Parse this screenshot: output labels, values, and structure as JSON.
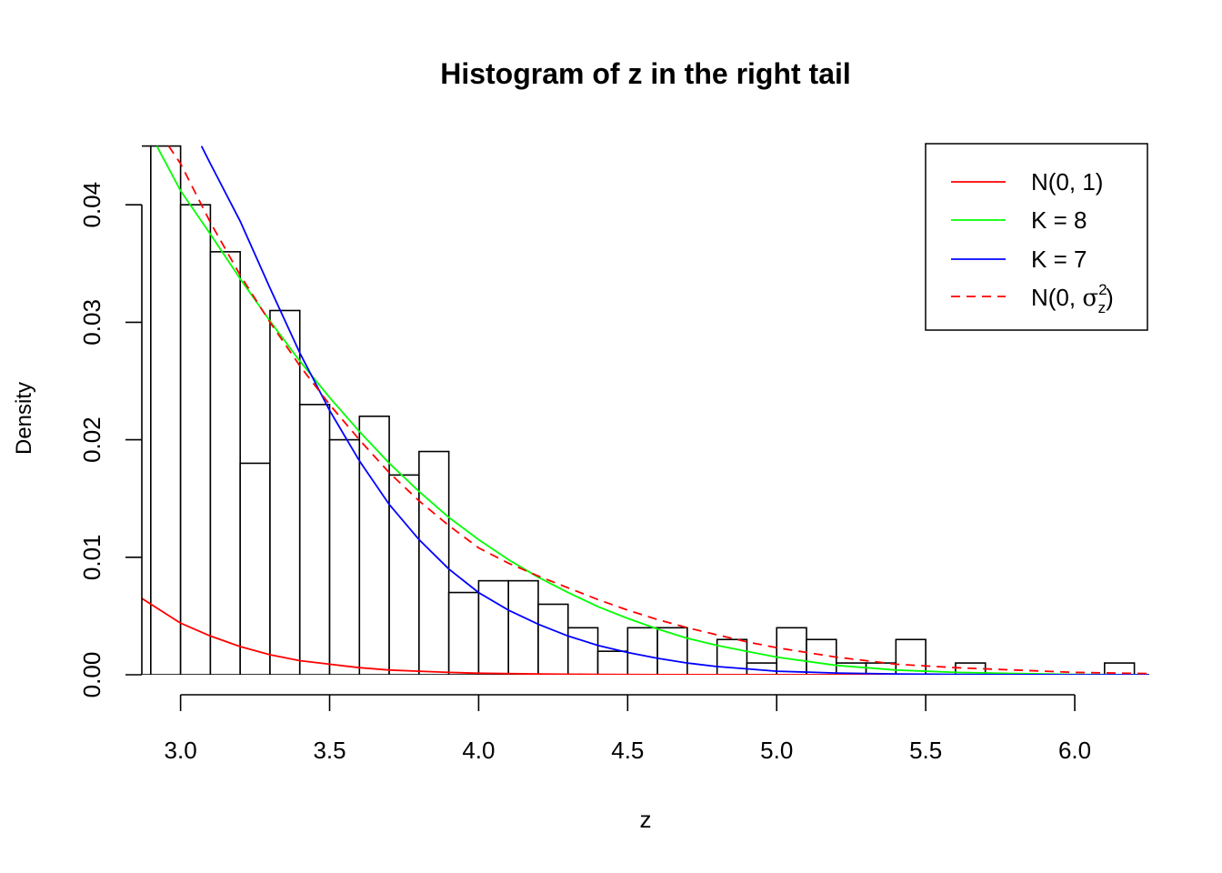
{
  "chart_data": {
    "type": "histogram",
    "title": "Histogram of z in the right tail",
    "xlabel": "z",
    "ylabel": "Density",
    "xlim": [
      2.87,
      6.25
    ],
    "ylim": [
      0,
      0.0452
    ],
    "x_ticks": [
      3.0,
      3.5,
      4.0,
      4.5,
      5.0,
      5.5,
      6.0
    ],
    "x_tick_labels": [
      "3.0",
      "3.5",
      "4.0",
      "4.5",
      "5.0",
      "5.5",
      "6.0"
    ],
    "y_ticks": [
      0.0,
      0.01,
      0.02,
      0.03,
      0.04
    ],
    "y_tick_labels": [
      "0.00",
      "0.01",
      "0.02",
      "0.03",
      "0.04"
    ],
    "grid": false,
    "legend_position": "top-right",
    "histogram": {
      "bins": [
        {
          "x0": 2.8,
          "x1": 2.9,
          "density": 0.045
        },
        {
          "x0": 2.9,
          "x1": 3.0,
          "density": 0.045
        },
        {
          "x0": 3.0,
          "x1": 3.1,
          "density": 0.04
        },
        {
          "x0": 3.1,
          "x1": 3.2,
          "density": 0.036
        },
        {
          "x0": 3.2,
          "x1": 3.3,
          "density": 0.018
        },
        {
          "x0": 3.3,
          "x1": 3.4,
          "density": 0.031
        },
        {
          "x0": 3.4,
          "x1": 3.5,
          "density": 0.023
        },
        {
          "x0": 3.5,
          "x1": 3.6,
          "density": 0.02
        },
        {
          "x0": 3.6,
          "x1": 3.7,
          "density": 0.022
        },
        {
          "x0": 3.7,
          "x1": 3.8,
          "density": 0.017
        },
        {
          "x0": 3.8,
          "x1": 3.9,
          "density": 0.019
        },
        {
          "x0": 3.9,
          "x1": 4.0,
          "density": 0.007
        },
        {
          "x0": 4.0,
          "x1": 4.1,
          "density": 0.008
        },
        {
          "x0": 4.1,
          "x1": 4.2,
          "density": 0.008
        },
        {
          "x0": 4.2,
          "x1": 4.3,
          "density": 0.006
        },
        {
          "x0": 4.3,
          "x1": 4.4,
          "density": 0.004
        },
        {
          "x0": 4.4,
          "x1": 4.5,
          "density": 0.002
        },
        {
          "x0": 4.5,
          "x1": 4.6,
          "density": 0.004
        },
        {
          "x0": 4.6,
          "x1": 4.7,
          "density": 0.004
        },
        {
          "x0": 4.7,
          "x1": 4.8,
          "density": 0.0
        },
        {
          "x0": 4.8,
          "x1": 4.9,
          "density": 0.003
        },
        {
          "x0": 4.9,
          "x1": 5.0,
          "density": 0.001
        },
        {
          "x0": 5.0,
          "x1": 5.1,
          "density": 0.004
        },
        {
          "x0": 5.1,
          "x1": 5.2,
          "density": 0.003
        },
        {
          "x0": 5.2,
          "x1": 5.3,
          "density": 0.001
        },
        {
          "x0": 5.3,
          "x1": 5.4,
          "density": 0.001
        },
        {
          "x0": 5.4,
          "x1": 5.5,
          "density": 0.003
        },
        {
          "x0": 5.5,
          "x1": 5.6,
          "density": 0.0
        },
        {
          "x0": 5.6,
          "x1": 5.7,
          "density": 0.001
        },
        {
          "x0": 5.7,
          "x1": 5.8,
          "density": 0.0
        },
        {
          "x0": 5.8,
          "x1": 5.9,
          "density": 0.0
        },
        {
          "x0": 5.9,
          "x1": 6.0,
          "density": 0.0
        },
        {
          "x0": 6.0,
          "x1": 6.1,
          "density": 0.0
        },
        {
          "x0": 6.1,
          "x1": 6.2,
          "density": 0.001
        }
      ]
    },
    "series": [
      {
        "name": "N(0, 1)",
        "color": "#ff0000",
        "dash": "solid",
        "x": [
          2.87,
          3.0,
          3.1,
          3.2,
          3.3,
          3.4,
          3.5,
          3.6,
          3.7,
          3.8,
          3.9,
          4.0,
          4.2,
          4.4,
          4.6,
          5.0,
          5.5,
          6.25
        ],
        "values": [
          0.0065,
          0.0044,
          0.0033,
          0.0024,
          0.0017,
          0.0012,
          0.0009,
          0.0006,
          0.0004,
          0.0003,
          0.0002,
          0.00013,
          6e-05,
          3e-05,
          1e-05,
          0.0,
          0.0,
          0.0
        ]
      },
      {
        "name": "K = 8",
        "color": "#00ff00",
        "dash": "solid",
        "x": [
          2.92,
          3.0,
          3.1,
          3.2,
          3.3,
          3.4,
          3.5,
          3.6,
          3.7,
          3.8,
          3.9,
          4.0,
          4.1,
          4.2,
          4.3,
          4.4,
          4.5,
          4.6,
          4.7,
          4.8,
          4.9,
          5.0,
          5.2,
          5.4,
          5.6,
          5.8,
          6.0,
          6.25
        ],
        "values": [
          0.045,
          0.0412,
          0.0375,
          0.0337,
          0.0301,
          0.0267,
          0.0236,
          0.0207,
          0.018,
          0.0156,
          0.0134,
          0.0115,
          0.0098,
          0.0083,
          0.007,
          0.0058,
          0.0048,
          0.0039,
          0.0031,
          0.0025,
          0.002,
          0.0015,
          0.0008,
          0.0004,
          0.0002,
          0.0001,
          3e-05,
          0.0
        ]
      },
      {
        "name": "K = 7",
        "color": "#0000ff",
        "dash": "solid",
        "x": [
          3.07,
          3.1,
          3.2,
          3.3,
          3.4,
          3.5,
          3.6,
          3.7,
          3.8,
          3.9,
          4.0,
          4.1,
          4.2,
          4.3,
          4.4,
          4.5,
          4.6,
          4.7,
          4.8,
          4.9,
          5.0,
          5.2,
          5.4,
          5.6,
          5.8,
          6.0,
          6.25
        ],
        "values": [
          0.045,
          0.0435,
          0.0386,
          0.0329,
          0.0274,
          0.0225,
          0.0182,
          0.0145,
          0.0115,
          0.009,
          0.007,
          0.0055,
          0.0043,
          0.0033,
          0.0025,
          0.0019,
          0.0014,
          0.001,
          0.0007,
          0.0005,
          0.0003,
          0.00015,
          7e-05,
          3e-05,
          1e-05,
          0.0,
          0.0
        ]
      },
      {
        "name": "N(0, σ_z²)",
        "color": "#ff0000",
        "dash": "dashed",
        "x": [
          2.96,
          3.0,
          3.1,
          3.2,
          3.3,
          3.4,
          3.5,
          3.6,
          3.7,
          3.8,
          3.9,
          4.0,
          4.1,
          4.2,
          4.3,
          4.4,
          4.5,
          4.6,
          4.7,
          4.8,
          4.9,
          5.0,
          5.2,
          5.4,
          5.6,
          5.8,
          6.0,
          6.25
        ],
        "values": [
          0.045,
          0.0435,
          0.0385,
          0.034,
          0.03,
          0.0263,
          0.023,
          0.02,
          0.0172,
          0.0148,
          0.0127,
          0.0108,
          0.0095,
          0.0084,
          0.0074,
          0.0064,
          0.0055,
          0.0047,
          0.004,
          0.0034,
          0.0028,
          0.0023,
          0.0015,
          0.0009,
          0.0006,
          0.0004,
          0.0002,
          0.0001
        ]
      }
    ],
    "legend": [
      {
        "label": "N(0, 1)"
      },
      {
        "label": "K = 8"
      },
      {
        "label": "K = 7"
      },
      {
        "label_prefix": "N(0, ",
        "label_sigma": "σ",
        "label_sup": "2",
        "label_sub": "z",
        "label_suffix": ")"
      }
    ]
  }
}
